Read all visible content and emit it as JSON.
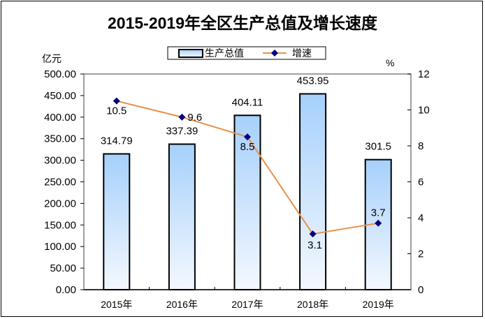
{
  "chart_data": {
    "type": "bar+line",
    "title": "2015-2019年全区生产总值及增长速度",
    "categories": [
      "2015年",
      "2016年",
      "2017年",
      "2018年",
      "2019年"
    ],
    "series": [
      {
        "name": "生产总值",
        "type": "bar",
        "axis": "left",
        "values": [
          314.79,
          337.39,
          404.11,
          453.95,
          301.5
        ],
        "labels": [
          "314.79",
          "337.39",
          "404.11",
          "453.95",
          "301.5"
        ],
        "color": "#9fcbf8"
      },
      {
        "name": "增速",
        "type": "line",
        "axis": "right",
        "values": [
          10.5,
          9.6,
          8.5,
          3.1,
          3.7
        ],
        "labels": [
          "10.5",
          "9.6",
          "8.5",
          "3.1",
          "3.7"
        ],
        "color": "#e8914b",
        "marker_color": "#000080"
      }
    ],
    "y_left": {
      "label": "亿元",
      "ylim": [
        0,
        500
      ],
      "ticks": [
        "0.00",
        "50.00",
        "100.00",
        "150.00",
        "200.00",
        "250.00",
        "300.00",
        "350.00",
        "400.00",
        "450.00",
        "500.00"
      ]
    },
    "y_right": {
      "label": "%",
      "ylim": [
        0,
        12
      ],
      "ticks": [
        "0",
        "2",
        "4",
        "6",
        "8",
        "10",
        "12"
      ]
    },
    "legend": {
      "position": "top-center",
      "entries": [
        "生产总值",
        "增速"
      ]
    },
    "grid": false
  }
}
